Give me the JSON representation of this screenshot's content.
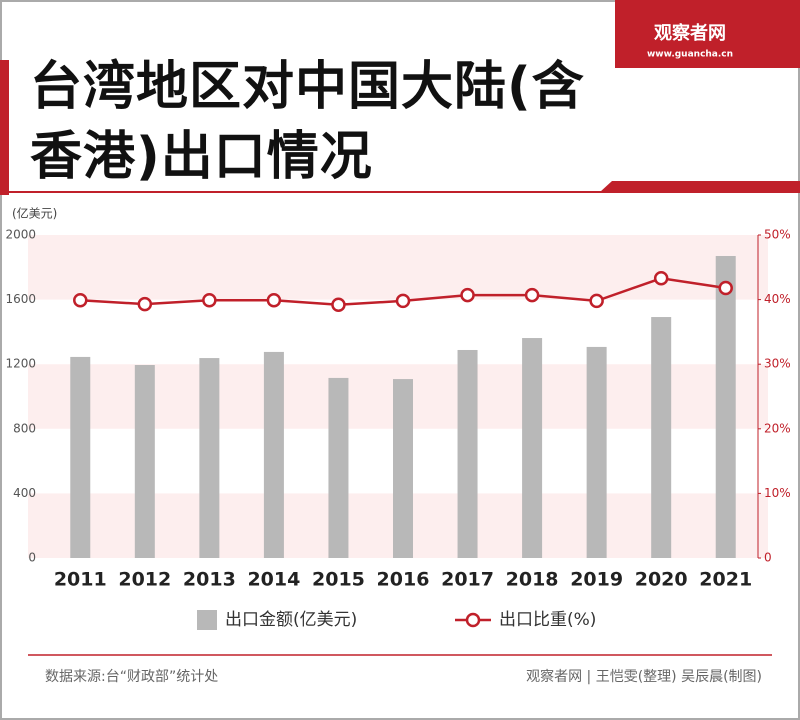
{
  "logo": {
    "name": "观察者网",
    "url": "www.guancha.cn"
  },
  "chart_data": {
    "type": "bar",
    "title": "台湾地区对中国大陆(含香港)出口情况",
    "y_unit": "(亿美元)",
    "categories": [
      "2011",
      "2012",
      "2013",
      "2014",
      "2015",
      "2016",
      "2017",
      "2018",
      "2019",
      "2020",
      "2021"
    ],
    "series": [
      {
        "name": "出口金额(亿美元)",
        "type": "bar",
        "color": "#b8b8b8",
        "values": [
          1245,
          1195,
          1238,
          1276,
          1115,
          1108,
          1288,
          1362,
          1307,
          1492,
          1870
        ]
      },
      {
        "name": "出口比重(%)",
        "type": "line",
        "axis": "y2",
        "color": "#c0202a",
        "values": [
          39.9,
          39.3,
          39.9,
          39.9,
          39.2,
          39.8,
          40.7,
          40.7,
          39.8,
          43.3,
          41.8
        ]
      }
    ],
    "ylim": [
      0,
      2000
    ],
    "yticks": [
      0,
      400,
      800,
      1200,
      1600,
      2000
    ],
    "y2lim": [
      0,
      50
    ],
    "y2ticks": [
      {
        "value": 0,
        "label": "0"
      },
      {
        "value": 10,
        "label": "10%"
      },
      {
        "value": 20,
        "label": "20%"
      },
      {
        "value": 30,
        "label": "30%"
      },
      {
        "value": 40,
        "label": "40%"
      },
      {
        "value": 50,
        "label": "50%"
      }
    ],
    "bands": true
  },
  "footer": {
    "source": "数据来源:台“财政部”统计处",
    "credit": "观察者网 | 王恺雯(整理) 吴辰晨(制图)"
  }
}
